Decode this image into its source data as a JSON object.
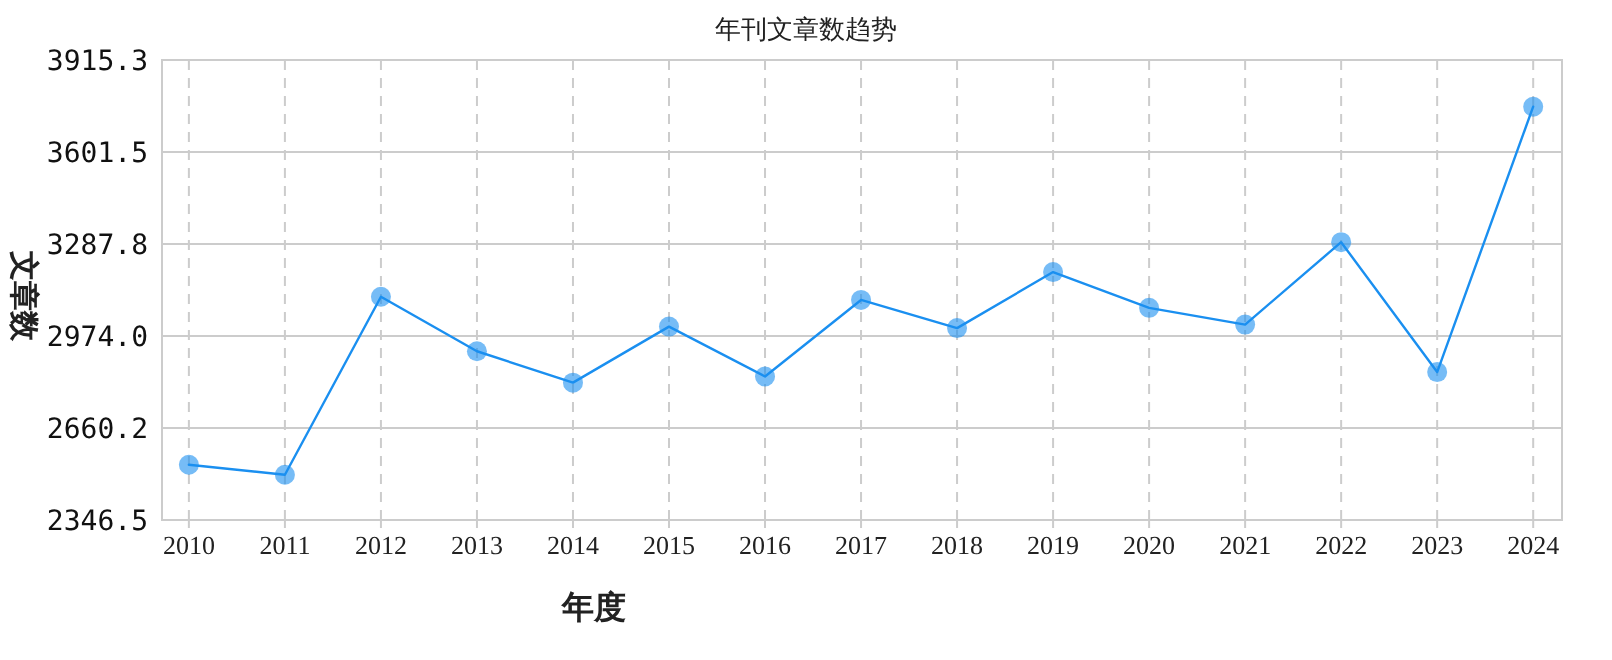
{
  "chart_data": {
    "type": "line",
    "title": "年刊文章数趋势",
    "xlabel": "年度",
    "ylabel": "文章数",
    "x": [
      2010,
      2011,
      2012,
      2013,
      2014,
      2015,
      2016,
      2017,
      2018,
      2019,
      2020,
      2021,
      2022,
      2023,
      2024
    ],
    "values": [
      2535,
      2501,
      3108,
      2922,
      2815,
      3006,
      2836,
      3097,
      3001,
      3192,
      3070,
      3013,
      3294,
      2851,
      3756
    ],
    "color": "#1a8ff0",
    "xlim": [
      2009.72,
      2024.3
    ],
    "xticks": [
      2010,
      2011,
      2012,
      2013,
      2014,
      2015,
      2016,
      2017,
      2018,
      2019,
      2020,
      2021,
      2022,
      2023,
      2024
    ],
    "ylim": [
      2346.5,
      3915.3
    ],
    "yticks": [
      2346.5,
      2660.2,
      {
        "value": 2974,
        "label": "2974.0"
      },
      3287.8,
      3601.5,
      3915.3
    ],
    "grid": true,
    "marker": "circle",
    "line_style": "solid"
  }
}
